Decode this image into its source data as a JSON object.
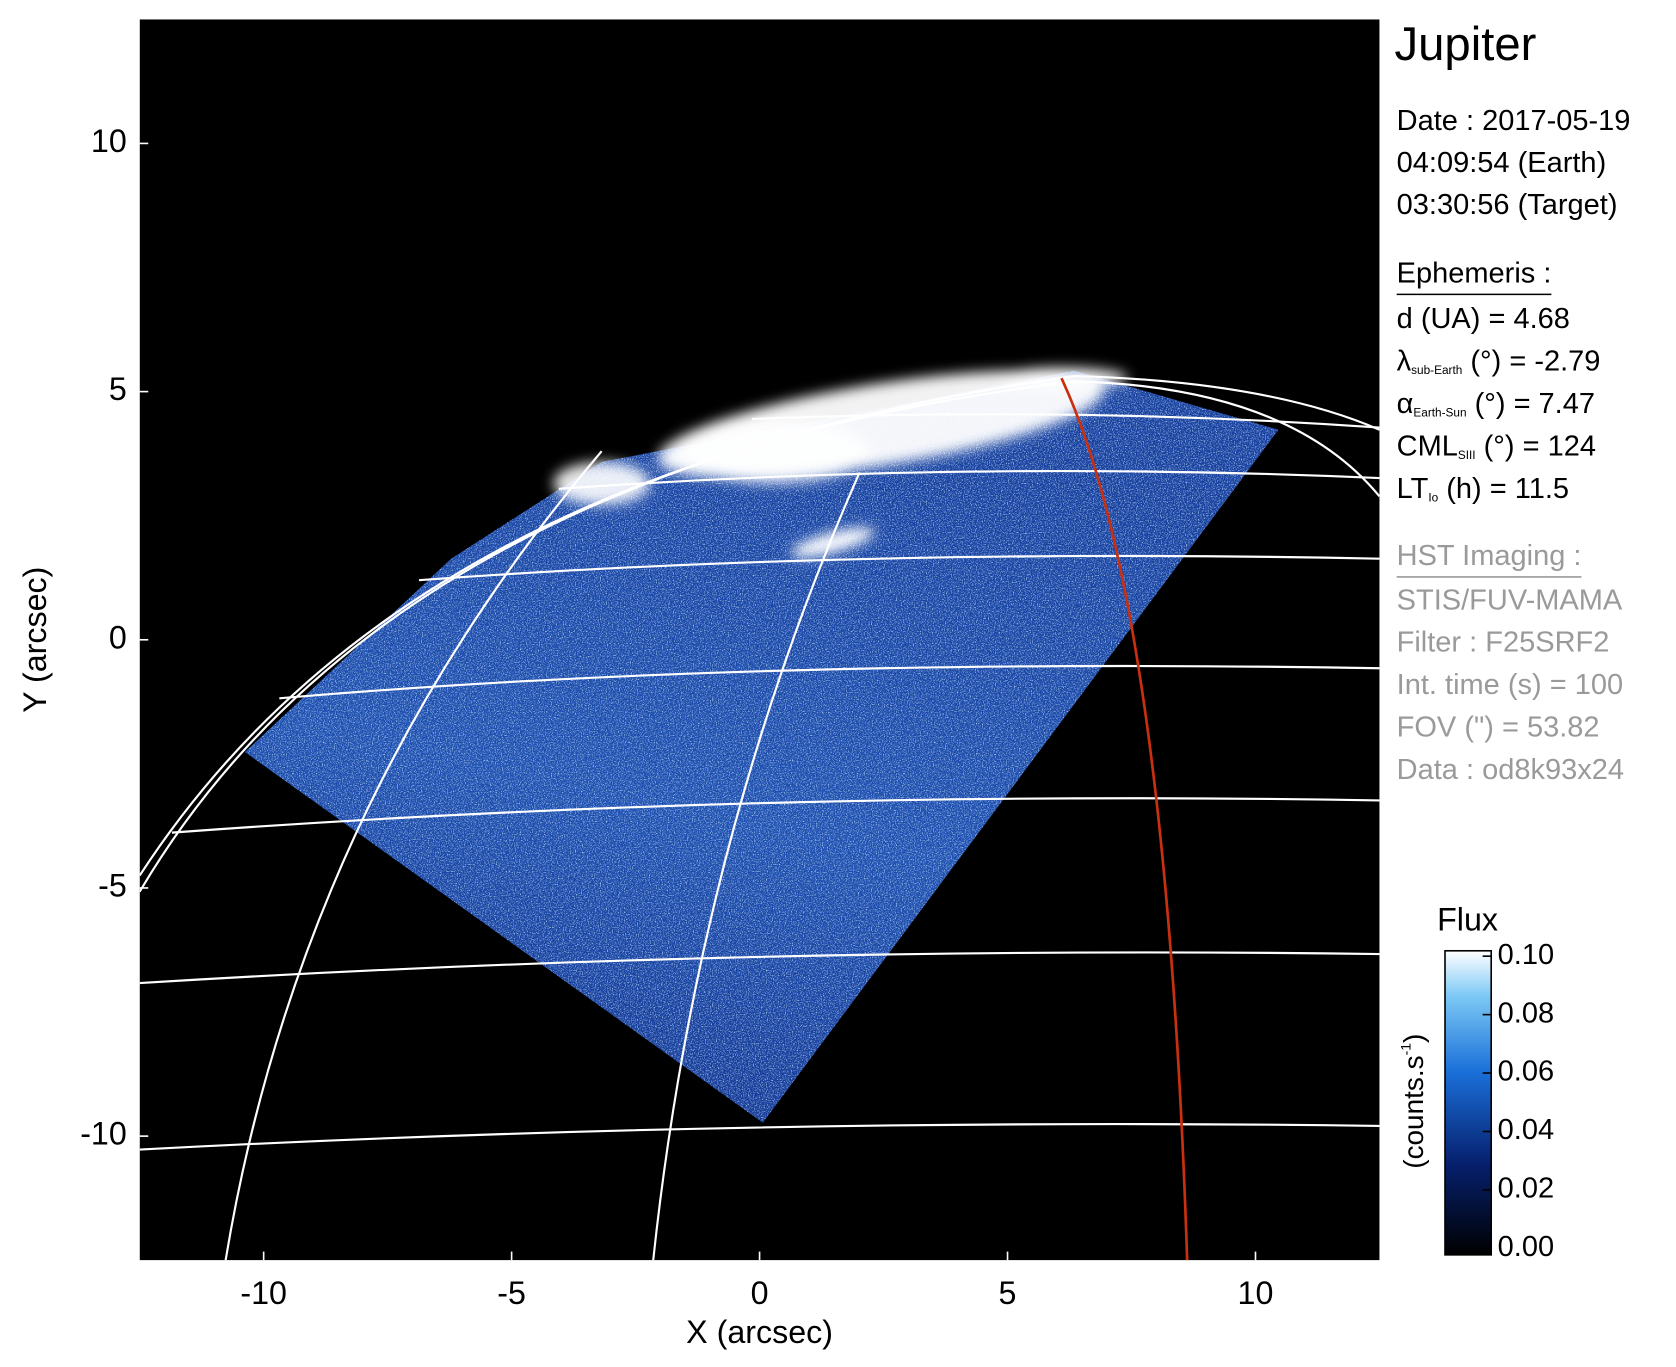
{
  "chart_data": {
    "type": "image",
    "title": "Jupiter",
    "x_label": "X (arcsec)",
    "y_label": "Y (arcsec)",
    "xlim": [
      -12.5,
      12.5
    ],
    "ylim": [
      -12.5,
      12.5
    ],
    "xticks": [
      -10,
      -5,
      0,
      5,
      10
    ],
    "yticks": [
      -10,
      -5,
      0,
      5,
      10
    ],
    "date_lines": [
      "Date : 2017-05-19",
      "04:09:54 (Earth)",
      "03:30:56 (Target)"
    ],
    "ephemeris_title": "Ephemeris :",
    "ephemeris": [
      {
        "label": "d (UA)    = 4.68"
      },
      {
        "label": "λ",
        "sub": "sub-Earth",
        "rest": " (°) = -2.79"
      },
      {
        "label": "α",
        "sub": "Earth-Sun",
        "rest": " (°) = 7.47"
      },
      {
        "label": "CML",
        "sub": "SIII",
        "rest": " (°) = 124"
      },
      {
        "label": "LT",
        "sub": "Io",
        "rest": " (h) = 11.5"
      }
    ],
    "imaging_title": "HST Imaging :",
    "imaging": [
      "STIS/FUV-MAMA",
      "Filter : F25SRF2",
      "Int. time (s) = 100",
      "FOV (\") = 53.82",
      "Data : od8k93x24"
    ],
    "colorbar": {
      "label": "Flux",
      "unit": {
        "text": "(counts.s",
        "sup": "-1",
        "end": ")"
      },
      "lim": [
        0,
        0.1
      ],
      "ticks": [
        {
          "value": 0,
          "label": "0.00"
        },
        {
          "value": 0.02,
          "label": "0.02"
        },
        {
          "value": 0.04,
          "label": "0.04"
        },
        {
          "value": 0.06,
          "label": "0.06"
        },
        {
          "value": 0.08,
          "label": "0.08"
        },
        {
          "value": 0.1,
          "label": "0.10"
        }
      ]
    }
  }
}
